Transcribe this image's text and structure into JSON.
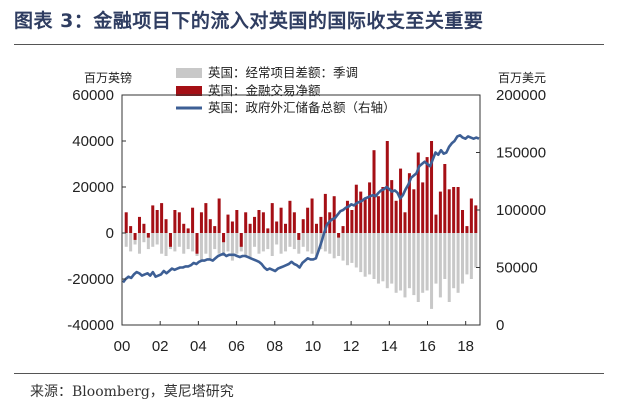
{
  "figure": {
    "title": "图表 3：金融项目下的流入对英国的国际收支至关重要",
    "source": "来源：Bloomberg，莫尼塔研究"
  },
  "chart_data": {
    "type": "bar+line",
    "left_axis": {
      "unit_label": "百万英镑",
      "ylim": [
        -40000,
        60000
      ],
      "ticks": [
        -40000,
        -20000,
        0,
        20000,
        40000,
        60000
      ],
      "tick_labels": [
        "-40000",
        "-20000",
        "0",
        "20000",
        "40000",
        "60000"
      ]
    },
    "right_axis": {
      "unit_label": "百万美元",
      "ylim": [
        0,
        200000
      ],
      "ticks": [
        0,
        50000,
        100000,
        150000,
        200000
      ],
      "tick_labels": [
        "0",
        "50000",
        "100000",
        "150000",
        "200000"
      ]
    },
    "x_axis": {
      "range": [
        2000.0,
        2018.75
      ],
      "ticks": [
        2000,
        2002,
        2004,
        2006,
        2008,
        2010,
        2012,
        2014,
        2016,
        2018
      ],
      "tick_labels": [
        "00",
        "02",
        "04",
        "06",
        "08",
        "10",
        "12",
        "14",
        "16",
        "18"
      ]
    },
    "legend": {
      "position": "top-left",
      "entries": [
        {
          "label": "英国：经常项目差额：季调",
          "color": "#c8c8c8",
          "kind": "bar"
        },
        {
          "label": "英国：金融交易净额",
          "color": "#a50f15",
          "kind": "bar"
        },
        {
          "label": "英国：政府外汇储备总额（右轴）",
          "color": "#3d5f95",
          "kind": "line"
        }
      ]
    },
    "quarters_start": "2000Q1",
    "current_account_gbp_m": [
      -6000,
      -8000,
      -5000,
      -9000,
      -4000,
      -7000,
      -6000,
      -5000,
      -9000,
      -10000,
      -7000,
      -8000,
      -6000,
      -9000,
      -7000,
      -8000,
      -10000,
      -12000,
      -9000,
      -11000,
      -7000,
      -9000,
      -10000,
      -8000,
      -12000,
      -9000,
      -8000,
      -10000,
      -11000,
      -6000,
      -9000,
      -8000,
      -7000,
      -10000,
      -5000,
      -9000,
      -8000,
      -6000,
      -7000,
      -9000,
      -6000,
      -8000,
      -9000,
      -10000,
      -7000,
      -8000,
      -9000,
      -11000,
      -10000,
      -12000,
      -14000,
      -13000,
      -15000,
      -17000,
      -19000,
      -18000,
      -20000,
      -22000,
      -21000,
      -24000,
      -22000,
      -26000,
      -25000,
      -28000,
      -24000,
      -27000,
      -30000,
      -26000,
      -25000,
      -33000,
      -22000,
      -28000,
      -20000,
      -30000,
      -24000,
      -26000,
      -22000,
      -18000,
      -20000,
      -15000
    ],
    "financial_net_gbp_m": [
      9000,
      3000,
      -3000,
      7000,
      4000,
      -2000,
      12000,
      10000,
      13000,
      6000,
      -6000,
      10000,
      9000,
      4000,
      2000,
      11000,
      -9000,
      9000,
      13000,
      6000,
      3000,
      15000,
      -4000,
      8000,
      5000,
      10000,
      -6000,
      9000,
      4000,
      7000,
      10000,
      9000,
      2000,
      13000,
      5000,
      11000,
      4000,
      14000,
      9000,
      -3000,
      6000,
      11000,
      15000,
      4000,
      7000,
      17000,
      9000,
      16000,
      -2000,
      3000,
      14000,
      10000,
      21000,
      18000,
      15000,
      22000,
      36000,
      16000,
      20000,
      40000,
      23000,
      14000,
      28000,
      9000,
      26000,
      19000,
      35000,
      22000,
      33000,
      40000,
      8000,
      18000,
      30000,
      19000,
      20000,
      20000,
      10000,
      3000,
      15000,
      12000
    ],
    "reserves_usd_m": [
      37000,
      40000,
      42000,
      41000,
      44000,
      46000,
      45000,
      43000,
      44000,
      45000,
      43000,
      46000,
      42000,
      43000,
      44000,
      47000,
      45000,
      47000,
      49000,
      48000,
      49000,
      50000,
      50000,
      51000,
      51000,
      52000,
      54000,
      53000,
      55000,
      56000,
      56000,
      57000,
      57000,
      56000,
      58000,
      60000,
      61000,
      62000,
      60000,
      61000,
      61000,
      61000,
      60000,
      59000,
      60000,
      60000,
      59000,
      58000,
      57000,
      56000,
      55000,
      53000,
      50000,
      48000,
      49000,
      48000,
      47000,
      49000,
      50000,
      51000,
      52000,
      53000,
      55000,
      53000,
      52000,
      50000,
      54000,
      56000,
      58000,
      57000,
      57000,
      58000,
      65000,
      72000,
      80000,
      87000,
      90000,
      92000,
      93000,
      96000,
      99000,
      100000,
      102000,
      103000,
      105000,
      104000,
      106000,
      107000,
      108000,
      110000,
      111000,
      112000,
      113000,
      112000,
      115000,
      117000,
      118000,
      120000,
      118000,
      116000,
      117000,
      115000,
      110000,
      113000,
      118000,
      122000,
      128000,
      130000,
      132000,
      138000,
      140000,
      142000,
      140000,
      138000,
      144000,
      150000,
      148000,
      152000,
      149000,
      150000,
      155000,
      158000,
      160000,
      164000,
      165000,
      163000,
      162000,
      164000,
      163000,
      162000,
      163000,
      162000
    ]
  }
}
